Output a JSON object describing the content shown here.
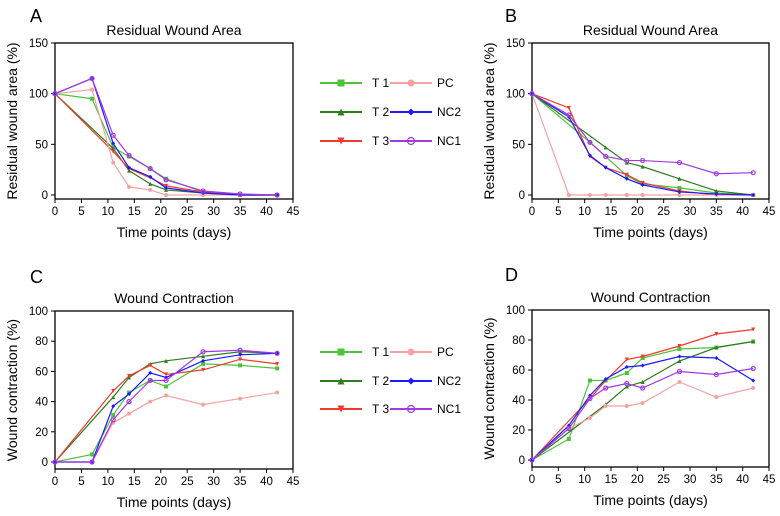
{
  "colors": {
    "T 1": "#4cc43a",
    "T 2": "#2e7d1e",
    "T 3": "#f03a2e",
    "PC": "#f4a3a3",
    "NC2": "#1a1aff",
    "NC1": "#a03be0"
  },
  "legend": {
    "entries": [
      "T 1",
      "T 2",
      "T 3",
      "PC",
      "NC2",
      "NC1"
    ],
    "placement": "between-panels"
  },
  "chart_data": [
    {
      "panel": "A",
      "type": "line",
      "title": "Residual Wound Area",
      "xlabel": "Time points (days)",
      "ylabel": "Residual wound area (%)",
      "xlim": [
        0,
        45
      ],
      "ylim": [
        0,
        150
      ],
      "xticks": [
        0,
        5,
        10,
        15,
        20,
        25,
        30,
        35,
        40,
        45
      ],
      "yticks": [
        0,
        50,
        100,
        150
      ],
      "x": [
        0,
        7,
        11,
        14,
        18,
        21,
        28,
        35,
        42
      ],
      "series": [
        {
          "name": "T 1",
          "values": [
            100,
            95,
            47,
            38,
            26,
            16,
            3,
            0,
            0
          ]
        },
        {
          "name": "T 2",
          "values": [
            100,
            null,
            46,
            24,
            11,
            5,
            2,
            0,
            0
          ]
        },
        {
          "name": "T 3",
          "values": [
            100,
            null,
            43,
            26,
            17,
            9,
            3,
            0,
            0
          ]
        },
        {
          "name": "PC",
          "values": [
            100,
            104,
            32,
            8,
            5,
            0,
            0,
            0,
            0
          ]
        },
        {
          "name": "NC2",
          "values": [
            100,
            115,
            51,
            27,
            18,
            7,
            2,
            0,
            0
          ]
        },
        {
          "name": "NC1",
          "values": [
            100,
            115,
            59,
            39,
            26,
            15,
            4,
            1,
            0
          ]
        }
      ]
    },
    {
      "panel": "B",
      "type": "line",
      "title": "Residual Wound Area",
      "xlabel": "Time points (days)",
      "ylabel": "Residual wound area (%)",
      "xlim": [
        0,
        45
      ],
      "ylim": [
        0,
        150
      ],
      "xticks": [
        0,
        5,
        10,
        15,
        20,
        25,
        30,
        35,
        40,
        45
      ],
      "yticks": [
        0,
        50,
        100,
        150
      ],
      "x": [
        0,
        7,
        11,
        14,
        18,
        21,
        28,
        35,
        42
      ],
      "series": [
        {
          "name": "T 1",
          "values": [
            100,
            null,
            52,
            null,
            19,
            11,
            7,
            2,
            0
          ]
        },
        {
          "name": "T 2",
          "values": [
            100,
            null,
            null,
            47,
            32,
            28,
            16,
            4,
            0
          ]
        },
        {
          "name": "T 3",
          "values": [
            100,
            86,
            38,
            27,
            20,
            12,
            4,
            0,
            0
          ]
        },
        {
          "name": "PC",
          "values": [
            100,
            0,
            0,
            0,
            0,
            0,
            0,
            0,
            0
          ]
        },
        {
          "name": "NC2",
          "values": [
            100,
            77,
            39,
            27,
            16,
            10,
            3,
            1,
            0
          ]
        },
        {
          "name": "NC1",
          "values": [
            100,
            79,
            52,
            38,
            34,
            34,
            32,
            21,
            22
          ]
        }
      ]
    },
    {
      "panel": "C",
      "type": "line",
      "title": "Wound Contraction",
      "xlabel": "Time points (days)",
      "ylabel": "Wound contraction (%)",
      "xlim": [
        0,
        45
      ],
      "ylim": [
        0,
        100
      ],
      "xticks": [
        0,
        5,
        10,
        15,
        20,
        25,
        30,
        35,
        40,
        45
      ],
      "yticks": [
        0,
        20,
        40,
        60,
        80,
        100
      ],
      "x": [
        0,
        7,
        11,
        14,
        18,
        21,
        28,
        35,
        42
      ],
      "series": [
        {
          "name": "T 1",
          "values": [
            0,
            5,
            31,
            46,
            54,
            50,
            65,
            64,
            62
          ]
        },
        {
          "name": "T 2",
          "values": [
            0,
            null,
            43,
            56,
            65,
            67,
            70,
            73,
            72
          ]
        },
        {
          "name": "T 3",
          "values": [
            0,
            null,
            47,
            57,
            64,
            58,
            61,
            68,
            65
          ]
        },
        {
          "name": "PC",
          "values": [
            0,
            0,
            26,
            32,
            40,
            44,
            38,
            42,
            46
          ]
        },
        {
          "name": "NC2",
          "values": [
            0,
            0,
            37,
            45,
            59,
            56,
            67,
            71,
            72
          ]
        },
        {
          "name": "NC1",
          "values": [
            0,
            0,
            28,
            40,
            54,
            54,
            73,
            74,
            72
          ]
        }
      ]
    },
    {
      "panel": "D",
      "type": "line",
      "title": "Wound Contraction",
      "xlabel": "Time points (days)",
      "ylabel": "Wound contraction (%)",
      "xlim": [
        0,
        45
      ],
      "ylim": [
        0,
        100
      ],
      "xticks": [
        0,
        5,
        10,
        15,
        20,
        25,
        30,
        35,
        40,
        45
      ],
      "yticks": [
        0,
        20,
        40,
        60,
        80,
        100
      ],
      "x": [
        0,
        7,
        11,
        14,
        18,
        21,
        28,
        35,
        42
      ],
      "series": [
        {
          "name": "T 1",
          "values": [
            0,
            14,
            53,
            53,
            58,
            68,
            74,
            75,
            79
          ]
        },
        {
          "name": "T 2",
          "values": [
            0,
            null,
            null,
            37,
            49,
            52,
            66,
            75,
            79
          ]
        },
        {
          "name": "T 3",
          "values": [
            0,
            null,
            41,
            53,
            67,
            69,
            76,
            84,
            87
          ]
        },
        {
          "name": "PC",
          "values": [
            0,
            21,
            28,
            36,
            36,
            38,
            52,
            42,
            48
          ]
        },
        {
          "name": "NC2",
          "values": [
            0,
            23,
            43,
            54,
            62,
            63,
            69,
            68,
            53
          ]
        },
        {
          "name": "NC1",
          "values": [
            0,
            21,
            41,
            48,
            51,
            48,
            59,
            57,
            61
          ]
        }
      ]
    }
  ]
}
